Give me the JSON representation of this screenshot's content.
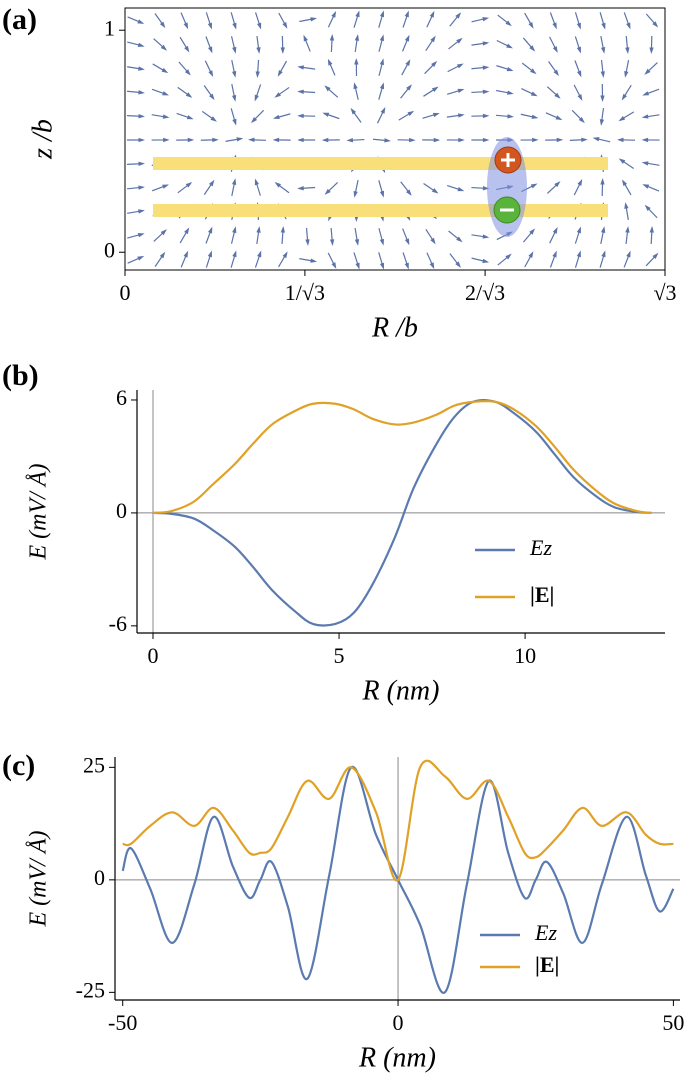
{
  "chart_data": [
    {
      "type": "stream",
      "panel": "(a)",
      "xlabel": "R /b",
      "ylabel": "z /b",
      "xlim": [
        0,
        1.732
      ],
      "xticks": [
        0,
        {
          "value": 0.577,
          "label": "1/√3"
        },
        {
          "value": 1.155,
          "label": "2/√3"
        },
        {
          "value": 1.732,
          "label": "√3"
        }
      ],
      "ylim": [
        -0.08,
        1.1
      ],
      "yticks": [
        0,
        1
      ],
      "color": "#5b73a8"
    },
    {
      "type": "line",
      "panel": "(b)",
      "xlabel": "R (nm)",
      "ylabel": "E (mV/ Å)",
      "x": [
        0,
        0.5,
        1.1,
        1.6,
        2.2,
        2.7,
        3.2,
        3.8,
        4.3,
        4.9,
        5.4,
        5.9,
        6.5,
        7,
        7.6,
        8.1,
        8.6,
        9.2,
        9.7,
        10.3,
        10.8,
        11.3,
        11.9,
        12.4,
        13,
        13.4
      ],
      "series": [
        {
          "name": "Ez",
          "color": "#5b7bb0",
          "values": [
            0,
            -0.05,
            -0.3,
            -0.9,
            -1.8,
            -2.9,
            -4.1,
            -5.2,
            -5.9,
            -5.9,
            -5.3,
            -3.8,
            -1.3,
            1.3,
            3.6,
            5.1,
            5.9,
            5.9,
            5.3,
            4.3,
            3.1,
            1.9,
            0.9,
            0.3,
            0.05,
            0
          ]
        },
        {
          "name": "|E|",
          "color": "#e0a126",
          "values": [
            0,
            0.1,
            0.6,
            1.5,
            2.6,
            3.7,
            4.7,
            5.4,
            5.8,
            5.8,
            5.5,
            5.0,
            4.7,
            4.8,
            5.2,
            5.7,
            5.9,
            5.9,
            5.5,
            4.6,
            3.5,
            2.3,
            1.2,
            0.5,
            0.1,
            0
          ]
        }
      ],
      "xlim": [
        -0.43,
        13.76
      ],
      "xticks": [
        0,
        5,
        10
      ],
      "ylim": [
        -6.38,
        6.53
      ],
      "yticks": [
        -6,
        0,
        6
      ],
      "zero_lines": true,
      "legend": "lower right"
    },
    {
      "type": "line",
      "panel": "(c)",
      "xlabel": "R (nm)",
      "ylabel": "E (mV/ Å)",
      "x": [
        -50,
        -48.5,
        -45,
        -41,
        -37,
        -33.5,
        -30,
        -27,
        -25,
        -23,
        -20,
        -16.5,
        -12.5,
        -8.5,
        -4,
        0,
        4,
        8.5,
        12.5,
        16.5,
        20,
        23,
        25,
        27,
        30,
        33.5,
        37,
        41.5,
        45,
        47.5,
        50
      ],
      "series": [
        {
          "name": "Ez",
          "color": "#5b7bb0",
          "values": [
            2,
            7,
            -2,
            -14,
            -1,
            14,
            3,
            -4,
            0,
            4,
            -6,
            -22,
            1,
            25,
            10,
            0,
            -10,
            -25,
            -1,
            22,
            6,
            -4,
            0,
            4,
            -3,
            -14,
            -1,
            14,
            1,
            -7,
            -2
          ]
        },
        {
          "name": "|E|",
          "color": "#e0a126",
          "values": [
            8,
            8,
            12,
            15,
            12,
            16,
            11,
            6,
            6,
            7,
            14,
            22,
            18,
            25,
            15,
            0,
            25,
            23,
            18,
            22,
            14,
            6,
            5,
            7,
            11,
            16,
            12,
            15,
            10,
            8,
            8
          ]
        }
      ],
      "xlim": [
        -51.4,
        51.2
      ],
      "xticks": [
        -50,
        0,
        50
      ],
      "ylim": [
        -26.7,
        27.3
      ],
      "yticks": [
        -25,
        0,
        25
      ],
      "zero_lines": true,
      "legend": "lower right"
    }
  ]
}
